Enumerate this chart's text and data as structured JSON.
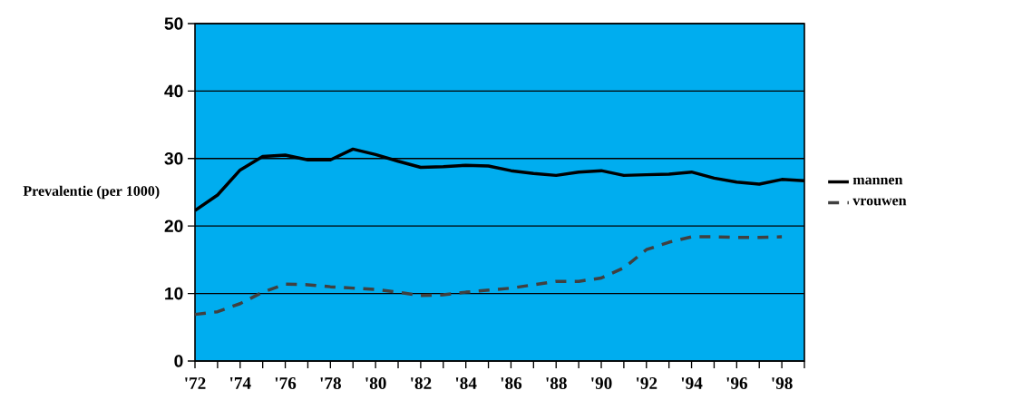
{
  "chart_data": {
    "type": "line",
    "ylabel": "Prevalentie (per 1000)",
    "x": [
      1972,
      1973,
      1974,
      1975,
      1976,
      1977,
      1978,
      1979,
      1980,
      1981,
      1982,
      1983,
      1984,
      1985,
      1986,
      1987,
      1988,
      1989,
      1990,
      1991,
      1992,
      1993,
      1994,
      1995,
      1996,
      1997,
      1998,
      1999
    ],
    "series": [
      {
        "name": "mannen",
        "color": "#000000",
        "line_style": "solid",
        "values": [
          22.3,
          24.6,
          28.3,
          30.3,
          30.5,
          29.8,
          29.8,
          31.4,
          30.6,
          29.6,
          28.7,
          28.8,
          29.0,
          28.9,
          28.2,
          27.8,
          27.5,
          28.0,
          28.2,
          27.5,
          27.6,
          27.7,
          28.0,
          27.1,
          26.5,
          26.2,
          26.9,
          26.7
        ]
      },
      {
        "name": "vrouwen",
        "color": "#404040",
        "line_style": "dashed",
        "values": [
          6.9,
          7.3,
          8.5,
          10.2,
          11.4,
          11.3,
          11.0,
          10.8,
          10.6,
          10.2,
          9.7,
          9.8,
          10.2,
          10.5,
          10.8,
          11.3,
          11.8,
          11.8,
          12.3,
          13.8,
          16.5,
          17.6,
          18.4,
          18.4,
          18.3,
          18.3,
          18.4,
          null
        ]
      }
    ],
    "xlim": [
      1972,
      1999
    ],
    "xticks": [
      {
        "value": 1972,
        "label": "'72"
      },
      {
        "value": 1973,
        "label": null
      },
      {
        "value": 1974,
        "label": "'74"
      },
      {
        "value": 1975,
        "label": null
      },
      {
        "value": 1976,
        "label": "'76"
      },
      {
        "value": 1977,
        "label": null
      },
      {
        "value": 1978,
        "label": "'78"
      },
      {
        "value": 1979,
        "label": null
      },
      {
        "value": 1980,
        "label": "'80"
      },
      {
        "value": 1981,
        "label": null
      },
      {
        "value": 1982,
        "label": "'82"
      },
      {
        "value": 1983,
        "label": null
      },
      {
        "value": 1984,
        "label": "'84"
      },
      {
        "value": 1985,
        "label": null
      },
      {
        "value": 1986,
        "label": "'86"
      },
      {
        "value": 1987,
        "label": null
      },
      {
        "value": 1988,
        "label": "'88"
      },
      {
        "value": 1989,
        "label": null
      },
      {
        "value": 1990,
        "label": "'90"
      },
      {
        "value": 1991,
        "label": null
      },
      {
        "value": 1992,
        "label": "'92"
      },
      {
        "value": 1993,
        "label": null
      },
      {
        "value": 1994,
        "label": "'94"
      },
      {
        "value": 1995,
        "label": null
      },
      {
        "value": 1996,
        "label": "'96"
      },
      {
        "value": 1997,
        "label": null
      },
      {
        "value": 1998,
        "label": "'98"
      },
      {
        "value": 1999,
        "label": null
      }
    ],
    "ylim": [
      0,
      50
    ],
    "yticks": [
      0,
      10,
      20,
      30,
      40,
      50
    ],
    "grid": "y",
    "legend": "right"
  }
}
